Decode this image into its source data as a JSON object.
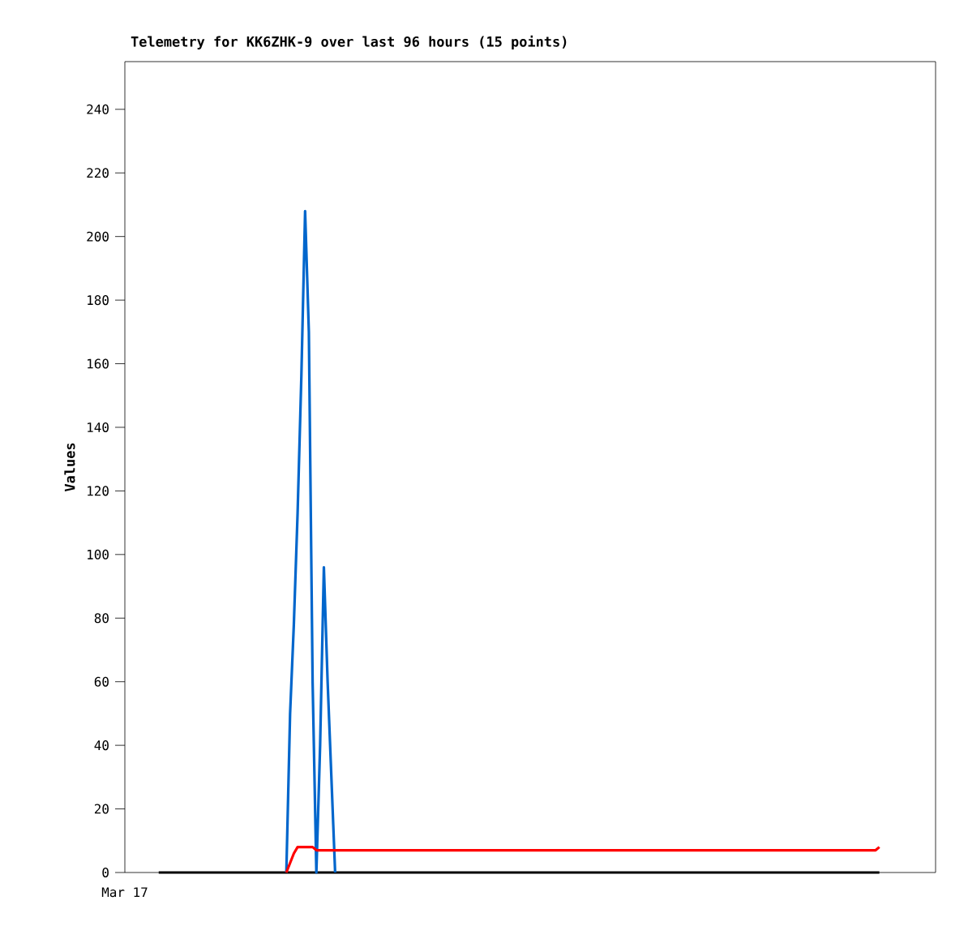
{
  "chart_data": {
    "type": "line",
    "title": "Telemetry for KK6ZHK-9 over last 96 hours (15 points)",
    "ylabel": "Values",
    "annotations": [
      "Mar 17"
    ],
    "ylim": [
      0,
      255
    ],
    "yticks": [
      0,
      20,
      40,
      60,
      80,
      100,
      120,
      140,
      160,
      180,
      200,
      220,
      240
    ],
    "grid": false,
    "categories": [
      null,
      null,
      null,
      null,
      null,
      null,
      null,
      null,
      null,
      null,
      null,
      null,
      null,
      null,
      null,
      null,
      null,
      null,
      null,
      null,
      null,
      null,
      null,
      null,
      null,
      null,
      null,
      null,
      null,
      null,
      null,
      null,
      null,
      null,
      null,
      null,
      null,
      null,
      null,
      null,
      null,
      null,
      null,
      null,
      null,
      null,
      null,
      null,
      null,
      null,
      null,
      null,
      null,
      null,
      null,
      null,
      null,
      null,
      null,
      null,
      null,
      null,
      null,
      null,
      null,
      null,
      null,
      null,
      null,
      null,
      null,
      null,
      null,
      null,
      null,
      null,
      null,
      null,
      null,
      null,
      null,
      null,
      null,
      null,
      null,
      null,
      null,
      null,
      null,
      null,
      null,
      null,
      null,
      null,
      null,
      null,
      null,
      null,
      null,
      null,
      null,
      null,
      null,
      null,
      null,
      null,
      null,
      null,
      null,
      null,
      null,
      null,
      null,
      null,
      null,
      null,
      null,
      null,
      null,
      null,
      null,
      null,
      null,
      null,
      null,
      null,
      null,
      null,
      null,
      null,
      null,
      null,
      null,
      null,
      null,
      null,
      null,
      null,
      null,
      null,
      null,
      null,
      null,
      null,
      null,
      null,
      null,
      null,
      null,
      null,
      null,
      null,
      null,
      null,
      null,
      null,
      null,
      null,
      null,
      null,
      null,
      null,
      null,
      null,
      null,
      null,
      null,
      null,
      null,
      null,
      null,
      null,
      null,
      null,
      null,
      null,
      null,
      null,
      null,
      null,
      null,
      null,
      null,
      null,
      null,
      null,
      null,
      null,
      null,
      null,
      null,
      null,
      null
    ],
    "series": [
      {
        "color": "#000000",
        "values": [
          0,
          0,
          0,
          0,
          0,
          0,
          0,
          0,
          0,
          0,
          0,
          0,
          0,
          0,
          0,
          0,
          0,
          0,
          0,
          0,
          0,
          0,
          0,
          0,
          0,
          0,
          0,
          0,
          0,
          0,
          0,
          0,
          0,
          0,
          0,
          0,
          0,
          0,
          0,
          0,
          0,
          0,
          0,
          0,
          0,
          0,
          0,
          0,
          0,
          0,
          0,
          0,
          0,
          0,
          0,
          0,
          0,
          0,
          0,
          0,
          0,
          0,
          0,
          0,
          0,
          0,
          0,
          0,
          0,
          0,
          0,
          0,
          0,
          0,
          0,
          0,
          0,
          0,
          0,
          0,
          0,
          0,
          0,
          0,
          0,
          0,
          0,
          0,
          0,
          0,
          0,
          0,
          0,
          0,
          0,
          0,
          0,
          0,
          0,
          0,
          0,
          0,
          0,
          0,
          0,
          0,
          0,
          0,
          0,
          0,
          0,
          0,
          0,
          0,
          0,
          0,
          0,
          0,
          0,
          0,
          0,
          0,
          0,
          0,
          0,
          0,
          0,
          0,
          0,
          0,
          0,
          0,
          0,
          0,
          0,
          0,
          0,
          0,
          0,
          0,
          0,
          0,
          0,
          0,
          0,
          0,
          0,
          0,
          0,
          0,
          0,
          0,
          0,
          0,
          0,
          0,
          0,
          0,
          0,
          0,
          0,
          0,
          0,
          0,
          0,
          0,
          0,
          0,
          0,
          0,
          0,
          0,
          0,
          0,
          0,
          0,
          0,
          0,
          0,
          0,
          0,
          0,
          0,
          0,
          0,
          0,
          0,
          0,
          0,
          0,
          0,
          0,
          0
        ]
      },
      {
        "color": "#0066cc",
        "values": [
          null,
          null,
          null,
          null,
          null,
          null,
          null,
          null,
          null,
          null,
          null,
          null,
          null,
          null,
          null,
          null,
          null,
          null,
          null,
          null,
          null,
          null,
          null,
          null,
          null,
          null,
          null,
          null,
          null,
          null,
          null,
          null,
          null,
          null,
          0,
          50,
          78,
          113,
          156,
          208,
          170,
          60,
          0,
          40,
          96,
          60,
          30,
          0,
          null,
          null,
          null,
          null,
          null,
          null,
          null,
          null,
          null,
          null,
          null,
          null,
          null,
          null,
          null,
          null,
          null,
          null,
          null,
          null,
          null,
          null,
          null,
          null,
          null,
          null,
          null,
          null,
          null,
          null,
          null,
          null,
          null,
          null,
          null,
          null,
          null,
          null,
          null,
          null,
          null,
          null,
          null,
          null,
          null,
          null,
          null,
          null,
          null,
          null,
          null,
          null,
          null,
          null,
          null,
          null,
          null,
          null,
          null,
          null,
          null,
          null,
          null,
          null,
          null,
          null,
          null,
          null,
          null,
          null,
          null,
          null,
          null,
          null,
          null,
          null,
          null,
          null,
          null,
          null,
          null,
          null,
          null,
          null,
          null,
          null,
          null,
          null,
          null,
          null,
          null,
          null,
          null,
          null,
          null,
          null,
          null,
          null,
          null,
          null,
          null,
          null,
          null,
          null,
          null,
          null,
          null,
          null,
          null,
          null,
          null,
          null,
          null,
          null,
          null,
          null,
          null,
          null,
          null,
          null,
          null,
          null,
          null,
          null,
          null,
          null,
          null,
          null,
          null,
          null,
          null,
          null,
          null,
          null,
          null,
          null,
          null,
          null,
          null,
          null,
          null,
          null,
          null,
          null,
          null
        ]
      },
      {
        "color": "#ff0000",
        "values": [
          null,
          null,
          null,
          null,
          null,
          null,
          null,
          null,
          null,
          null,
          null,
          null,
          null,
          null,
          null,
          null,
          null,
          null,
          null,
          null,
          null,
          null,
          null,
          null,
          null,
          null,
          null,
          null,
          null,
          null,
          null,
          null,
          null,
          null,
          0,
          3,
          6,
          8,
          8,
          8,
          8,
          8,
          7,
          7,
          7,
          7,
          7,
          7,
          7,
          7,
          7,
          7,
          7,
          7,
          7,
          7,
          7,
          7,
          7,
          7,
          7,
          7,
          7,
          7,
          7,
          7,
          7,
          7,
          7,
          7,
          7,
          7,
          7,
          7,
          7,
          7,
          7,
          7,
          7,
          7,
          7,
          7,
          7,
          7,
          7,
          7,
          7,
          7,
          7,
          7,
          7,
          7,
          7,
          7,
          7,
          7,
          7,
          7,
          7,
          7,
          7,
          7,
          7,
          7,
          7,
          7,
          7,
          7,
          7,
          7,
          7,
          7,
          7,
          7,
          7,
          7,
          7,
          7,
          7,
          7,
          7,
          7,
          7,
          7,
          7,
          7,
          7,
          7,
          7,
          7,
          7,
          7,
          7,
          7,
          7,
          7,
          7,
          7,
          7,
          7,
          7,
          7,
          7,
          7,
          7,
          7,
          7,
          7,
          7,
          7,
          7,
          7,
          7,
          7,
          7,
          7,
          7,
          7,
          7,
          7,
          7,
          7,
          7,
          7,
          7,
          7,
          7,
          7,
          7,
          7,
          7,
          7,
          7,
          7,
          7,
          7,
          7,
          7,
          7,
          7,
          7,
          7,
          7,
          7,
          7,
          7,
          7,
          7,
          7,
          7,
          7,
          7,
          8
        ]
      }
    ]
  }
}
